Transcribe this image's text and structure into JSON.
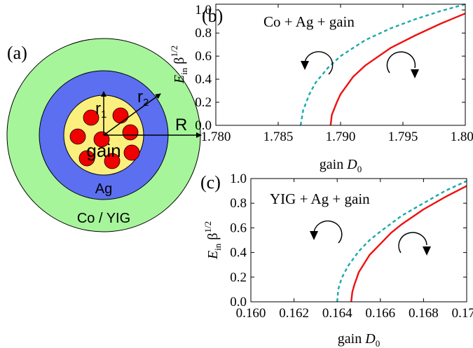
{
  "panel_a": {
    "label": "(a)",
    "labels": {
      "r1": "r",
      "r1_sub": "1",
      "r2": "r",
      "r2_sub": "2",
      "R": "R",
      "core": "gain",
      "middle": "Ag",
      "outer": "Co / YIG"
    },
    "colors": {
      "outer": "#a6f59a",
      "middle": "#5b6ff0",
      "core": "#fbef7e",
      "particles": "#f00000"
    }
  },
  "chart_data": [
    {
      "type": "line",
      "panel_label": "(b)",
      "annotation": "Co + Ag + gain",
      "xlabel": "gain",
      "xlabel_symbol": "D",
      "xlabel_sub": "0",
      "ylabel": "E",
      "ylabel_sub": "in",
      "ylabel_tail": "β",
      "ylabel_sup": "1/2",
      "xlim": [
        1.78,
        1.8
      ],
      "ylim": [
        0,
        1.05
      ],
      "xticks": [
        "1.780",
        "1.785",
        "1.790",
        "1.795",
        "1.800"
      ],
      "xtick_values": [
        1.78,
        1.785,
        1.79,
        1.795,
        1.8
      ],
      "yticks": [
        "0.0",
        "0.2",
        "0.4",
        "0.6",
        "0.8",
        "1.0"
      ],
      "ytick_values": [
        0,
        0.2,
        0.4,
        0.6,
        0.8,
        1.0
      ],
      "series": [
        {
          "style": "dashed",
          "color": "#1aa9a9",
          "x": [
            1.7868,
            1.787,
            1.7875,
            1.788,
            1.789,
            1.79,
            1.792,
            1.794,
            1.796,
            1.798,
            1.8
          ],
          "y": [
            0.0,
            0.13,
            0.27,
            0.37,
            0.5,
            0.6,
            0.74,
            0.84,
            0.92,
            0.99,
            1.05
          ]
        },
        {
          "style": "solid",
          "color": "#ee1111",
          "x": [
            1.7892,
            1.7893,
            1.7897,
            1.79,
            1.791,
            1.792,
            1.794,
            1.796,
            1.798,
            1.8
          ],
          "y": [
            0.0,
            0.09,
            0.2,
            0.27,
            0.42,
            0.52,
            0.67,
            0.78,
            0.88,
            0.97
          ]
        }
      ]
    },
    {
      "type": "line",
      "panel_label": "(c)",
      "annotation": "YIG + Ag + gain",
      "xlabel": "gain",
      "xlabel_symbol": "D",
      "xlabel_sub": "0",
      "ylabel": "E",
      "ylabel_sub": "in",
      "ylabel_tail": "β",
      "ylabel_sup": "1/2",
      "xlim": [
        0.16,
        0.17
      ],
      "ylim": [
        0,
        1.0
      ],
      "xticks": [
        "0.160",
        "0.162",
        "0.164",
        "0.166",
        "0.168",
        "0.170"
      ],
      "xtick_values": [
        0.16,
        0.162,
        0.164,
        0.166,
        0.168,
        0.17
      ],
      "yticks": [
        "0.0",
        "0.2",
        "0.4",
        "0.6",
        "0.8",
        "1.0"
      ],
      "ytick_values": [
        0,
        0.2,
        0.4,
        0.6,
        0.8,
        1.0
      ],
      "series": [
        {
          "style": "dashed",
          "color": "#1aa9a9",
          "x": [
            0.164,
            0.16405,
            0.1642,
            0.1645,
            0.165,
            0.1655,
            0.166,
            0.167,
            0.168,
            0.169,
            0.17
          ],
          "y": [
            0.0,
            0.1,
            0.19,
            0.29,
            0.41,
            0.5,
            0.57,
            0.7,
            0.8,
            0.9,
            0.98
          ]
        },
        {
          "style": "solid",
          "color": "#ee1111",
          "x": [
            0.16465,
            0.1647,
            0.1648,
            0.165,
            0.1655,
            0.166,
            0.1665,
            0.167,
            0.168,
            0.169,
            0.17
          ],
          "y": [
            0.0,
            0.08,
            0.14,
            0.24,
            0.38,
            0.47,
            0.56,
            0.63,
            0.75,
            0.85,
            0.94
          ]
        }
      ]
    }
  ]
}
